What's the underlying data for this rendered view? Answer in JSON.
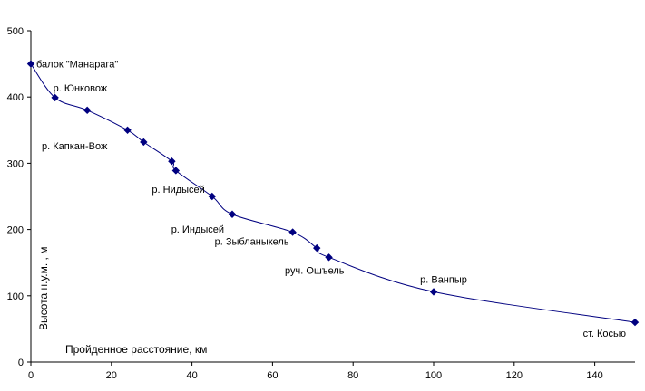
{
  "chart_data": {
    "type": "line",
    "title": "",
    "xlabel": "Пройденное расстояние, км",
    "ylabel": "Высота н.у.м. , м",
    "xlim": [
      0,
      150
    ],
    "ylim": [
      0,
      500
    ],
    "xticks": [
      "0",
      "20",
      "40",
      "60",
      "80",
      "100",
      "120",
      "140"
    ],
    "yticks": [
      "0",
      "100",
      "200",
      "300",
      "400",
      "500"
    ],
    "grid": false,
    "legend": "none",
    "line_color": "#000080",
    "points": [
      {
        "x": 0,
        "y": 450,
        "label": "балок \"Манарага\""
      },
      {
        "x": 6,
        "y": 399,
        "label": "р. Юнковож"
      },
      {
        "x": 14,
        "y": 380,
        "label": ""
      },
      {
        "x": 24,
        "y": 350,
        "label": ""
      },
      {
        "x": 28,
        "y": 332,
        "label": "р. Капкан-Вож"
      },
      {
        "x": 35,
        "y": 303,
        "label": ""
      },
      {
        "x": 36,
        "y": 289,
        "label": ""
      },
      {
        "x": 45,
        "y": 250,
        "label": "р. Нидысей"
      },
      {
        "x": 50,
        "y": 223,
        "label": "р. Индысей"
      },
      {
        "x": 65,
        "y": 196,
        "label": "р. Зыбланыкель"
      },
      {
        "x": 71,
        "y": 172,
        "label": ""
      },
      {
        "x": 74,
        "y": 158,
        "label": "руч. Ошъель"
      },
      {
        "x": 100,
        "y": 106,
        "label": "р. Ванпыр"
      },
      {
        "x": 150,
        "y": 60,
        "label": "ст. Косью"
      }
    ]
  }
}
